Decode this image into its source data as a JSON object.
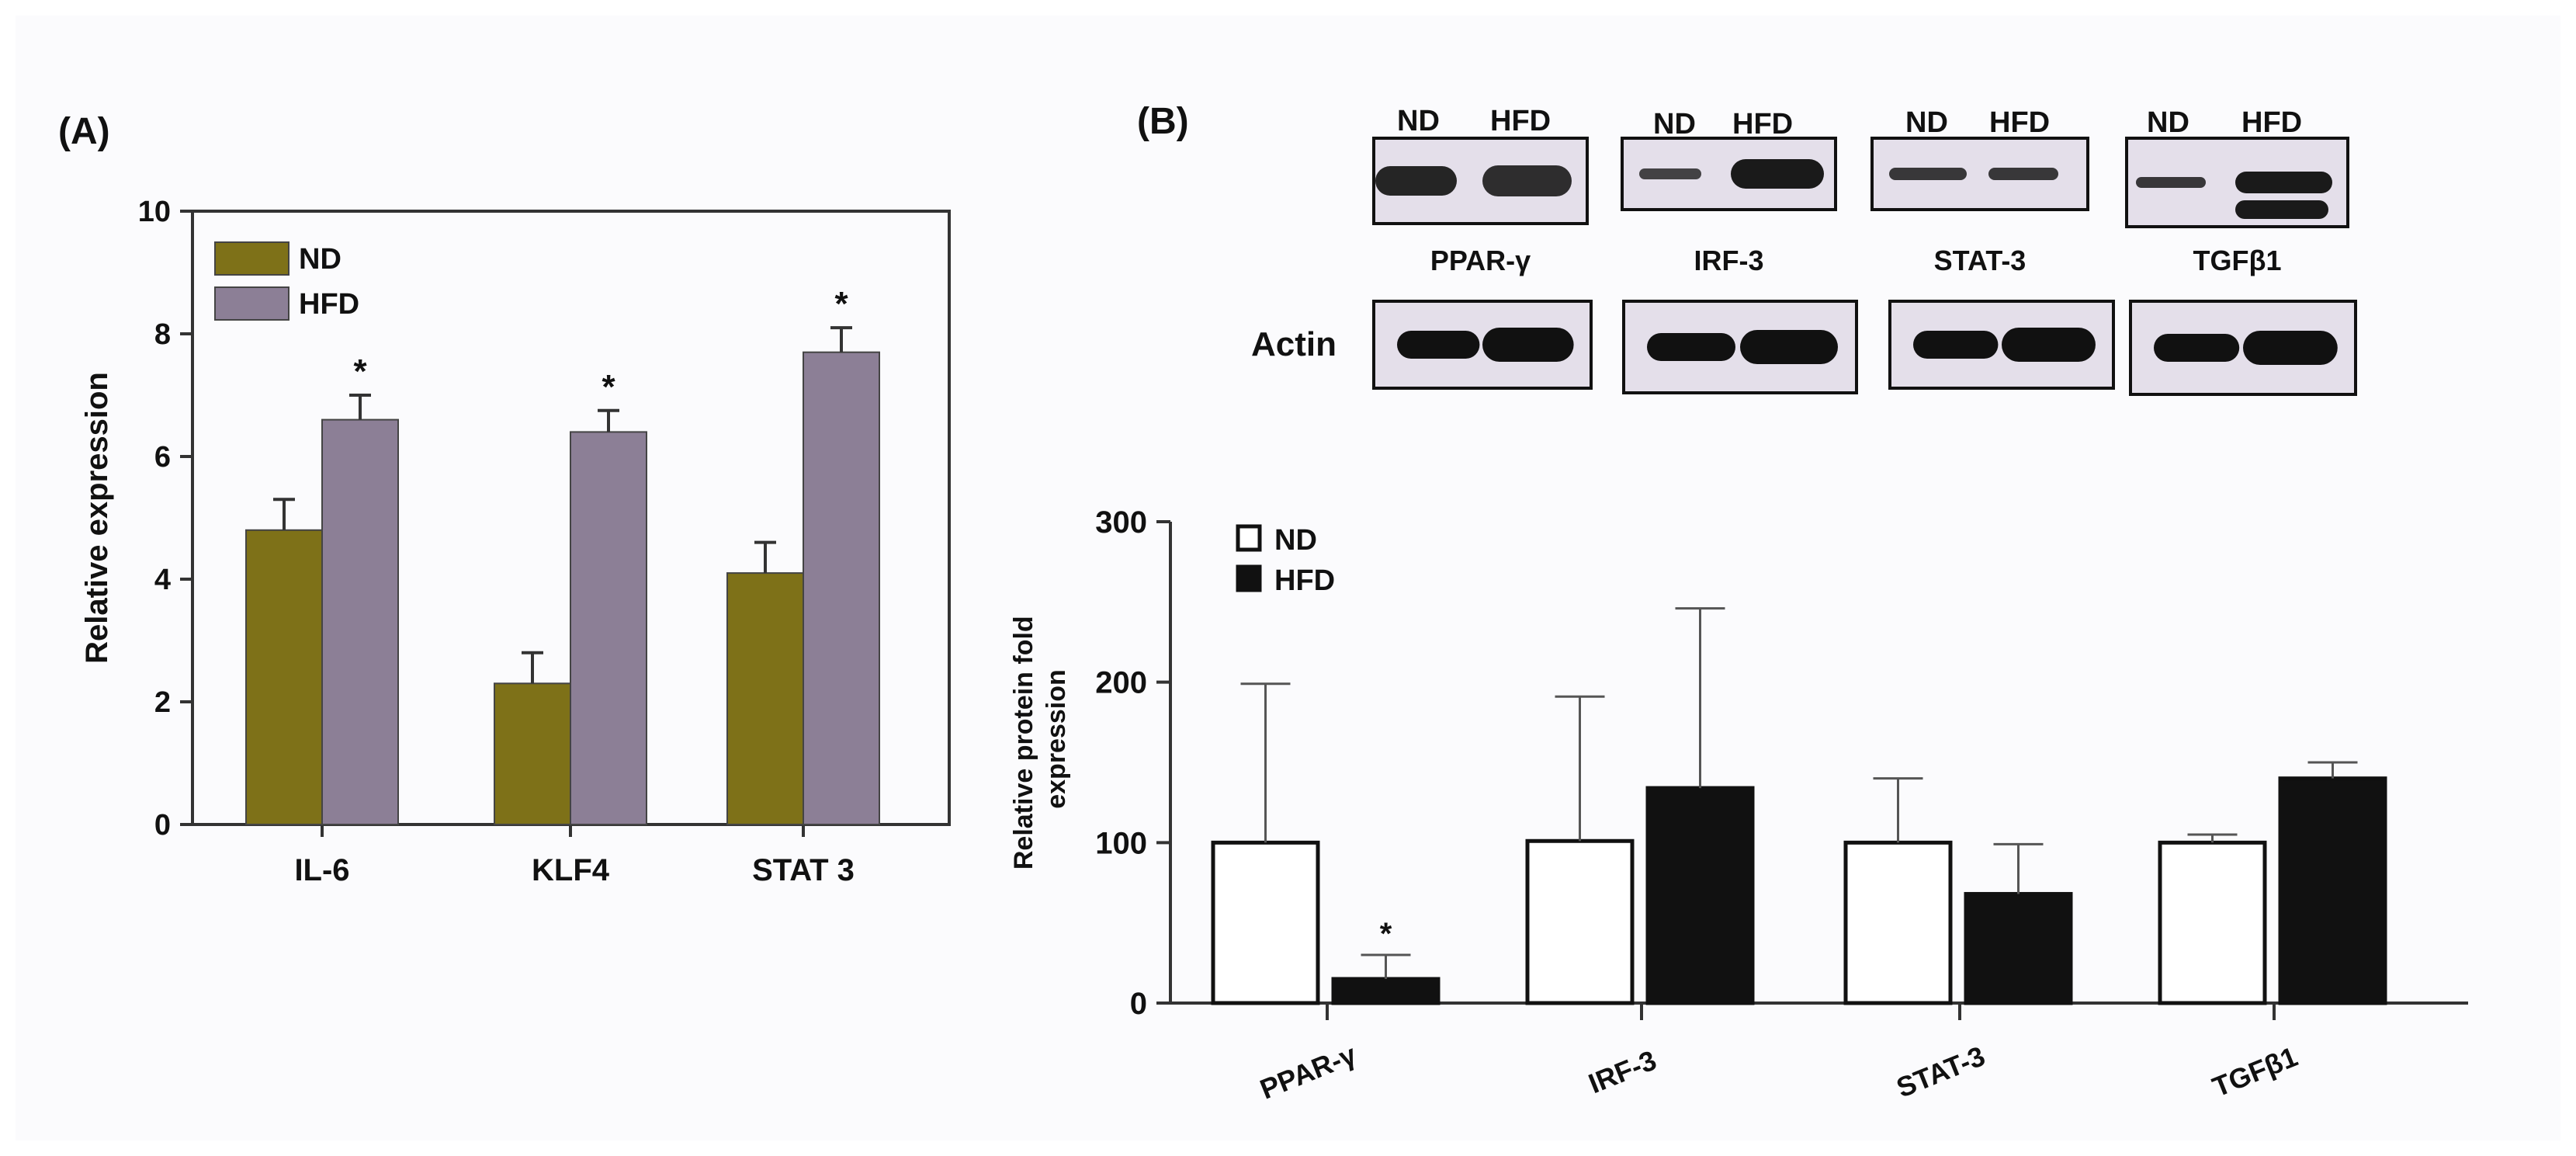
{
  "panel_a": {
    "label": "(A)",
    "ylabel": "Relative expression",
    "colors": {
      "ND": "#7e7118",
      "HFD": "#8c7f96"
    }
  },
  "panel_b": {
    "label": "(B)",
    "ylabel_line1": "Relative protein fold",
    "ylabel_line2": "expression",
    "blots": [
      {
        "protein": "PPAR-γ",
        "lane_nd": "ND",
        "lane_hfd": "HFD"
      },
      {
        "protein": "IRF-3",
        "lane_nd": "ND",
        "lane_hfd": "HFD"
      },
      {
        "protein": "STAT-3",
        "lane_nd": "ND",
        "lane_hfd": "HFD"
      },
      {
        "protein": "TGFβ1",
        "lane_nd": "ND",
        "lane_hfd": "HFD"
      }
    ],
    "loading_control": "Actin",
    "blot_background": "#e4dfea"
  },
  "chart_data": [
    {
      "type": "bar",
      "categories": [
        "IL-6",
        "KLF4",
        "STAT 3"
      ],
      "series": [
        {
          "name": "ND",
          "values": [
            4.8,
            2.3,
            4.1
          ],
          "errors": [
            0.5,
            0.5,
            0.5
          ]
        },
        {
          "name": "HFD",
          "values": [
            6.6,
            6.4,
            7.7
          ],
          "errors": [
            0.4,
            0.35,
            0.4
          ]
        }
      ],
      "significance": [
        "*",
        "*",
        "*"
      ],
      "xlabel": "",
      "ylabel": "Relative expression",
      "ylim": [
        0,
        10
      ],
      "yticks": [
        "0",
        "2",
        "4",
        "6",
        "8",
        "10"
      ],
      "legend": "top-left",
      "grid": false
    },
    {
      "type": "bar",
      "categories": [
        "PPAR-γ",
        "IRF-3",
        "STAT-3",
        "TGFβ1"
      ],
      "series": [
        {
          "name": "ND",
          "values": [
            100,
            101,
            100,
            100
          ],
          "errors": [
            99,
            90,
            40,
            5
          ]
        },
        {
          "name": "HFD",
          "values": [
            15,
            134,
            68,
            140
          ],
          "errors": [
            15,
            112,
            31,
            10
          ]
        }
      ],
      "significance": [
        "*",
        "",
        "",
        ""
      ],
      "xlabel": "",
      "ylabel": "Relative protein fold expression",
      "ylim": [
        0,
        300
      ],
      "yticks": [
        "0",
        "100",
        "200",
        "300"
      ],
      "legend": "top-left",
      "grid": false
    }
  ]
}
